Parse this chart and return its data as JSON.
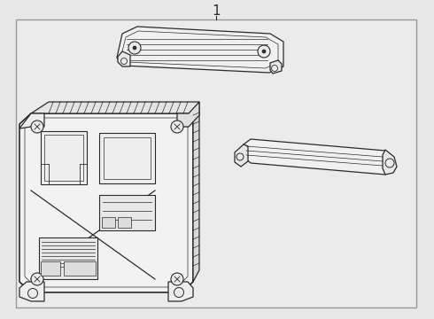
{
  "title": "1",
  "bg_color": "#e8e8e8",
  "box_bg": "#ebebeb",
  "line_color": "#2a2a2a",
  "fig_width": 4.9,
  "fig_height": 3.6,
  "dpi": 100,
  "border_color": "#aaaaaa"
}
